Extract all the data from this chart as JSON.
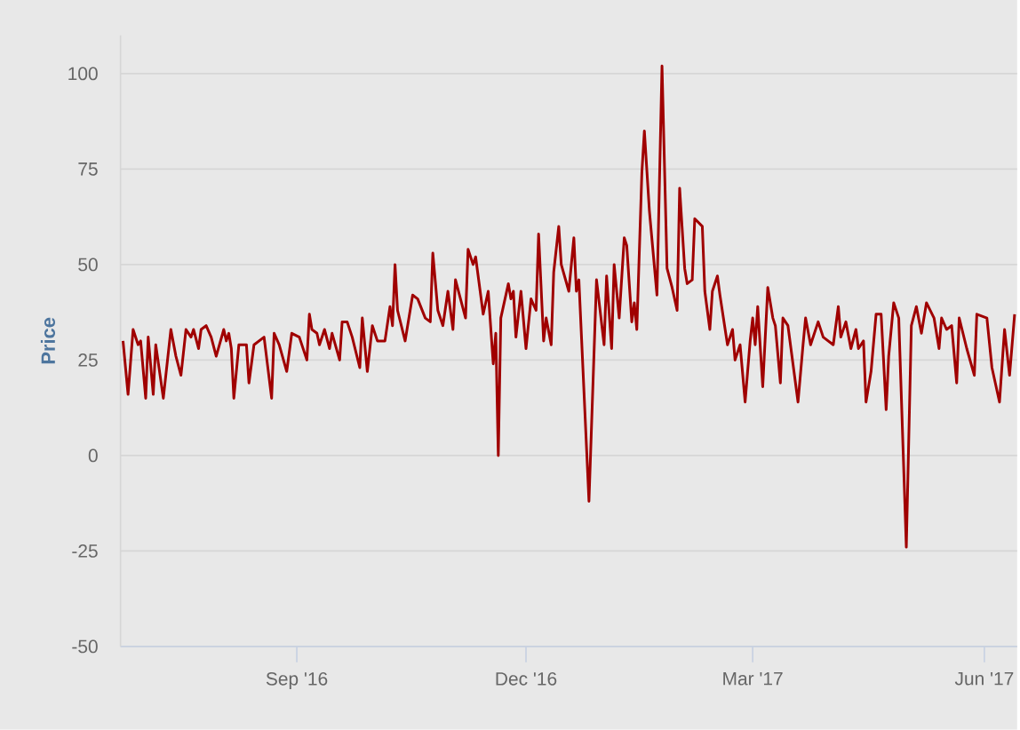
{
  "chart_data": {
    "type": "line",
    "ylabel": "Price",
    "color": "#a00000",
    "grid": "y",
    "xlim": [
      "2016-06-23",
      "2017-06-14"
    ],
    "ylim": [
      -50,
      110
    ],
    "yticks": [
      -50,
      -25,
      0,
      25,
      50,
      75,
      100
    ],
    "xticks": [
      {
        "value": "2016-09-01",
        "label": "Sep '16"
      },
      {
        "value": "2016-12-01",
        "label": "Dec '16"
      },
      {
        "value": "2017-03-01",
        "label": "Mar '17"
      },
      {
        "value": "2017-06-01",
        "label": "Jun '17"
      }
    ],
    "x": [
      "2016-06-24",
      "2016-06-26",
      "2016-06-28",
      "2016-06-30",
      "2016-07-01",
      "2016-07-03",
      "2016-07-04",
      "2016-07-06",
      "2016-07-07",
      "2016-07-10",
      "2016-07-13",
      "2016-07-15",
      "2016-07-17",
      "2016-07-19",
      "2016-07-21",
      "2016-07-22",
      "2016-07-24",
      "2016-07-25",
      "2016-07-27",
      "2016-07-29",
      "2016-07-31",
      "2016-08-03",
      "2016-08-04",
      "2016-08-05",
      "2016-08-06",
      "2016-08-07",
      "2016-08-09",
      "2016-08-12",
      "2016-08-13",
      "2016-08-15",
      "2016-08-19",
      "2016-08-22",
      "2016-08-23",
      "2016-08-25",
      "2016-08-28",
      "2016-08-30",
      "2016-09-02",
      "2016-09-05",
      "2016-09-06",
      "2016-09-07",
      "2016-09-09",
      "2016-09-10",
      "2016-09-12",
      "2016-09-14",
      "2016-09-15",
      "2016-09-18",
      "2016-09-19",
      "2016-09-21",
      "2016-09-23",
      "2016-09-26",
      "2016-09-27",
      "2016-09-29",
      "2016-10-01",
      "2016-10-03",
      "2016-10-05",
      "2016-10-06",
      "2016-10-08",
      "2016-10-09",
      "2016-10-10",
      "2016-10-11",
      "2016-10-14",
      "2016-10-17",
      "2016-10-19",
      "2016-10-22",
      "2016-10-24",
      "2016-10-25",
      "2016-10-27",
      "2016-10-29",
      "2016-10-31",
      "2016-11-02",
      "2016-11-03",
      "2016-11-07",
      "2016-11-08",
      "2016-11-10",
      "2016-11-11",
      "2016-11-14",
      "2016-11-16",
      "2016-11-18",
      "2016-11-19",
      "2016-11-20",
      "2016-11-21",
      "2016-11-24",
      "2016-11-25",
      "2016-11-26",
      "2016-11-27",
      "2016-11-29",
      "2016-12-01",
      "2016-12-03",
      "2016-12-05",
      "2016-12-06",
      "2016-12-08",
      "2016-12-09",
      "2016-12-11",
      "2016-12-12",
      "2016-12-14",
      "2016-12-15",
      "2016-12-18",
      "2016-12-20",
      "2016-12-21",
      "2016-12-22",
      "2016-12-26",
      "2016-12-29",
      "2017-01-01",
      "2017-01-02",
      "2017-01-04",
      "2017-01-05",
      "2017-01-07",
      "2017-01-09",
      "2017-01-10",
      "2017-01-12",
      "2017-01-13",
      "2017-01-14",
      "2017-01-16",
      "2017-01-17",
      "2017-01-19",
      "2017-01-22",
      "2017-01-24",
      "2017-01-26",
      "2017-01-28",
      "2017-01-30",
      "2017-01-31",
      "2017-02-02",
      "2017-02-03",
      "2017-02-05",
      "2017-02-06",
      "2017-02-09",
      "2017-02-10",
      "2017-02-12",
      "2017-02-13",
      "2017-02-15",
      "2017-02-16",
      "2017-02-19",
      "2017-02-21",
      "2017-02-22",
      "2017-02-24",
      "2017-02-26",
      "2017-02-28",
      "2017-03-01",
      "2017-03-02",
      "2017-03-03",
      "2017-03-05",
      "2017-03-07",
      "2017-03-09",
      "2017-03-10",
      "2017-03-12",
      "2017-03-13",
      "2017-03-15",
      "2017-03-19",
      "2017-03-21",
      "2017-03-22",
      "2017-03-24",
      "2017-03-27",
      "2017-03-29",
      "2017-04-02",
      "2017-04-04",
      "2017-04-05",
      "2017-04-07",
      "2017-04-09",
      "2017-04-11",
      "2017-04-12",
      "2017-04-14",
      "2017-04-15",
      "2017-04-17",
      "2017-04-19",
      "2017-04-21",
      "2017-04-23",
      "2017-04-24",
      "2017-04-26",
      "2017-04-28",
      "2017-05-01",
      "2017-05-03",
      "2017-05-05",
      "2017-05-07",
      "2017-05-09",
      "2017-05-12",
      "2017-05-14",
      "2017-05-15",
      "2017-05-17",
      "2017-05-19",
      "2017-05-21",
      "2017-05-22",
      "2017-05-25",
      "2017-05-28",
      "2017-05-29",
      "2017-06-02",
      "2017-06-04",
      "2017-06-07",
      "2017-06-09",
      "2017-06-11",
      "2017-06-13"
    ],
    "values": [
      30,
      16,
      33,
      29,
      30,
      15,
      31,
      16,
      29,
      15,
      33,
      26,
      21,
      33,
      31,
      33,
      28,
      33,
      34,
      31,
      26,
      33,
      30,
      32,
      28,
      15,
      29,
      29,
      19,
      29,
      31,
      15,
      32,
      29,
      22,
      32,
      31,
      25,
      37,
      33,
      32,
      29,
      33,
      28,
      32,
      25,
      35,
      35,
      31,
      23,
      36,
      22,
      34,
      30,
      30,
      30,
      39,
      34,
      50,
      38,
      30,
      42,
      41,
      36,
      35,
      53,
      38,
      34,
      43,
      33,
      46,
      36,
      54,
      50,
      52,
      37,
      43,
      24,
      32,
      0,
      36,
      45,
      41,
      43,
      31,
      43,
      28,
      41,
      38,
      58,
      30,
      36,
      29,
      48,
      60,
      50,
      43,
      57,
      43,
      46,
      -12,
      46,
      29,
      47,
      28,
      50,
      36,
      57,
      55,
      35,
      40,
      33,
      74,
      85,
      64,
      42,
      102,
      49,
      44,
      38,
      70,
      49,
      45,
      46,
      62,
      60,
      43,
      33,
      43,
      47,
      42,
      29,
      33,
      25,
      29,
      14,
      30,
      36,
      29,
      39,
      18,
      44,
      36,
      34,
      19,
      36,
      34,
      14,
      29,
      36,
      29,
      35,
      31,
      29,
      39,
      31,
      35,
      28,
      33,
      28,
      30,
      14,
      22,
      37,
      37,
      12,
      26,
      40,
      36,
      -24,
      34,
      39,
      32,
      40,
      36,
      28,
      36,
      33,
      34,
      19,
      36,
      28,
      21,
      37,
      36,
      23,
      14,
      33,
      21,
      37
    ]
  }
}
